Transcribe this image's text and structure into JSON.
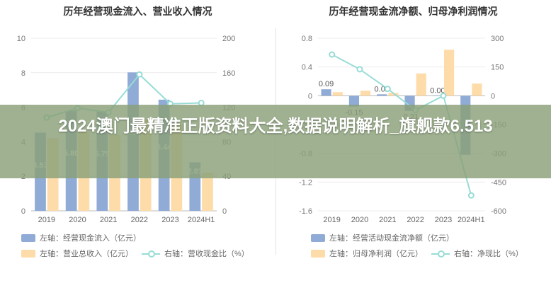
{
  "banner": {
    "text": "2024澳门最精准正版资料大全,数据说明解析_旗舰款6.513"
  },
  "chart_data": [
    {
      "type": "bar",
      "title": "历年经营现金流入、营业收入情况",
      "categories": [
        "2019",
        "2020",
        "2021",
        "2022",
        "2023",
        "2024H1"
      ],
      "left_axis": {
        "ticks": [
          "0",
          "2",
          "4",
          "6",
          "8",
          "10"
        ],
        "ylim": [
          0,
          10
        ]
      },
      "right_axis": {
        "ticks": [
          "0",
          "40",
          "80",
          "120",
          "160",
          "200"
        ],
        "ylim": [
          0,
          200
        ]
      },
      "series": [
        {
          "name": "左轴：经营现金流入（亿元）",
          "axis": "left",
          "kind": "bar",
          "color": "#8fabd6",
          "values": [
            4.53,
            5.8,
            5.75,
            8.02,
            6.44,
            2.81
          ],
          "labels": [
            "4.53",
            "5.80",
            "5.75",
            "8.02",
            "6.44",
            "2.81"
          ]
        },
        {
          "name": "左轴：营业总收入（亿元）",
          "axis": "left",
          "kind": "bar",
          "color": "#fddcaa",
          "values": [
            4.2,
            4.6,
            4.4,
            5.3,
            5.0,
            2.2
          ]
        },
        {
          "name": "右轴：营收现金比（%）",
          "axis": "right",
          "kind": "line",
          "color": "#98dcd6",
          "values": [
            108,
            119,
            114,
            158,
            124,
            125
          ]
        }
      ]
    },
    {
      "type": "bar",
      "title": "历年经营现金流净额、归母净利润情况",
      "categories": [
        "2019",
        "2020",
        "2021",
        "2022",
        "2023",
        "2024H1"
      ],
      "left_axis": {
        "ticks": [
          "-1.6",
          "-1.2",
          "-0.8",
          "-0.4",
          "0",
          "0.4",
          "0.8"
        ],
        "ylim": [
          -1.6,
          0.8
        ]
      },
      "right_axis": {
        "ticks": [
          "-600",
          "-450",
          "-300",
          "-150",
          "0",
          "150",
          "300"
        ],
        "ylim": [
          -600,
          300
        ]
      },
      "series": [
        {
          "name": "左轴：经营活动现金流净额（亿元）",
          "axis": "left",
          "kind": "bar",
          "color": "#8fabd6",
          "values": [
            0.09,
            -0.15,
            0.02,
            -0.21,
            0.0,
            -0.82
          ],
          "labels": [
            "0.09",
            "-0.15",
            "0.02",
            "-0.21",
            "0.00",
            ""
          ]
        },
        {
          "name": "左轴：归母净利润（亿元）",
          "axis": "left",
          "kind": "bar",
          "color": "#fddcaa",
          "values": [
            0.05,
            0.07,
            0.04,
            0.31,
            0.64,
            0.17
          ]
        },
        {
          "name": "右轴：净现比（%）",
          "axis": "right",
          "kind": "line",
          "color": "#98dcd6",
          "values": [
            215,
            138,
            36,
            -75,
            0,
            -520
          ]
        }
      ]
    }
  ]
}
